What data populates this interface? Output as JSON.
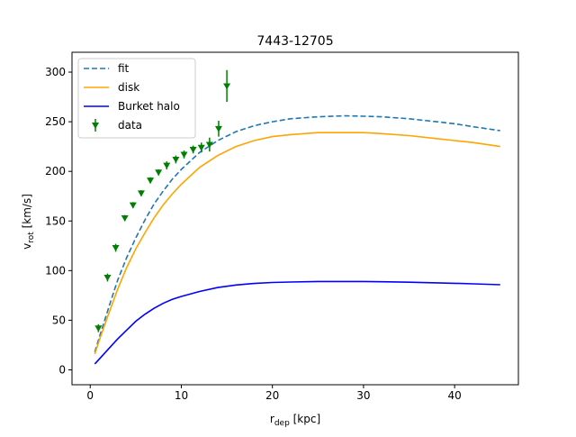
{
  "chart_data": {
    "type": "line",
    "title": "7443-12705",
    "xlabel": {
      "main": "r",
      "sub": "dep",
      "unit": " [kpc]"
    },
    "ylabel": {
      "main": "v",
      "sub": "rot",
      "unit": " [km/s]"
    },
    "xlim": [
      -2,
      47
    ],
    "ylim": [
      -15,
      320
    ],
    "xticks": [
      0,
      10,
      20,
      30,
      40
    ],
    "yticks": [
      0,
      50,
      100,
      150,
      200,
      250,
      300
    ],
    "grid": false,
    "legend_position": "upper-left",
    "series": [
      {
        "name": "fit",
        "style": "dashed",
        "color": "#1f77b4",
        "x": [
          0.5,
          1,
          2,
          3,
          4,
          5,
          6,
          7,
          8,
          9,
          10,
          12,
          14,
          16,
          18,
          20,
          22,
          25,
          28,
          30,
          32,
          35,
          38,
          40,
          42,
          45
        ],
        "y": [
          18,
          33,
          62,
          90,
          113,
          133,
          151,
          167,
          180,
          192,
          202,
          219,
          231,
          240,
          246,
          250,
          253,
          255,
          256,
          255.5,
          255,
          253,
          250,
          248,
          245,
          241
        ]
      },
      {
        "name": "disk",
        "style": "solid",
        "color": "#ffa500",
        "x": [
          0.5,
          1,
          2,
          3,
          4,
          5,
          6,
          7,
          8,
          9,
          10,
          12,
          14,
          16,
          18,
          20,
          22,
          25,
          28,
          30,
          32,
          35,
          38,
          40,
          42,
          45
        ],
        "y": [
          16,
          30,
          56,
          81,
          103,
          122,
          138,
          153,
          166,
          177,
          187,
          204,
          216,
          225,
          231,
          235,
          237,
          239,
          239,
          239,
          238,
          236,
          233,
          231,
          229,
          225
        ]
      },
      {
        "name": "Burket halo",
        "style": "solid",
        "color": "#0000ff",
        "x": [
          0.5,
          1,
          2,
          3,
          4,
          5,
          6,
          7,
          8,
          9,
          10,
          12,
          14,
          16,
          18,
          20,
          22,
          25,
          28,
          30,
          32,
          35,
          38,
          40,
          42,
          45
        ],
        "y": [
          6,
          11,
          21,
          31,
          40,
          49,
          56,
          62,
          67,
          71,
          74,
          79,
          83,
          85.5,
          87,
          88,
          88.5,
          89,
          89,
          89,
          88.8,
          88.3,
          87.7,
          87.2,
          86.7,
          85.8
        ]
      }
    ],
    "data_points": {
      "name": "data",
      "color": "#008000",
      "x": [
        0.9,
        1.9,
        2.8,
        3.8,
        4.7,
        5.6,
        6.6,
        7.5,
        8.4,
        9.4,
        10.3,
        11.3,
        12.2,
        13.1,
        14.1,
        15.0
      ],
      "y": [
        42,
        93,
        123,
        153,
        166,
        178,
        191,
        199,
        206,
        212,
        217,
        222,
        224,
        227,
        243,
        286
      ],
      "yerr": [
        4,
        4,
        4,
        3,
        3,
        3,
        3,
        3,
        4,
        4,
        4,
        4,
        5,
        7,
        8,
        16
      ]
    }
  }
}
